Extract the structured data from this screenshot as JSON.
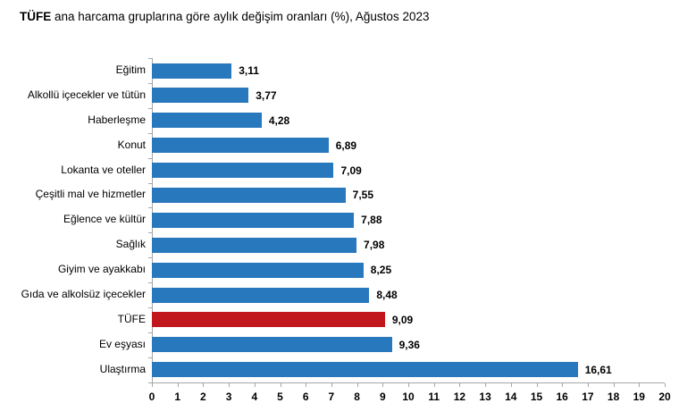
{
  "title": {
    "bold": "TÜFE",
    "rest": " ana harcama gruplarına göre aylık değişim oranları (%), Ağustos 2023"
  },
  "chart_data": {
    "type": "bar",
    "orientation": "horizontal",
    "title": "TÜFE ana harcama gruplarına göre aylık değişim oranları (%), Ağustos 2023",
    "categories": [
      "Eğitim",
      "Alkollü içecekler ve tütün",
      "Haberleşme",
      "Konut",
      "Lokanta ve oteller",
      "Çeşitli mal ve hizmetler",
      "Eğlence ve kültür",
      "Sağlık",
      "Giyim ve ayakkabı",
      "Gıda ve alkolsüz içecekler",
      "TÜFE",
      "Ev eşyası",
      "Ulaştırma"
    ],
    "values": [
      3.11,
      3.77,
      4.28,
      6.89,
      7.09,
      7.55,
      7.88,
      7.98,
      8.25,
      8.48,
      9.09,
      9.36,
      16.61
    ],
    "value_labels": [
      "3,11",
      "3,77",
      "4,28",
      "6,89",
      "7,09",
      "7,55",
      "7,88",
      "7,98",
      "8,25",
      "8,48",
      "9,09",
      "9,36",
      "16,61"
    ],
    "highlight_category": "TÜFE",
    "bar_color": "#2878be",
    "highlight_color": "#c0161c",
    "axis_color": "#a6a6a6",
    "xlabel": "",
    "ylabel": "",
    "xlim": [
      0,
      20
    ],
    "x_ticks": [
      0,
      1,
      2,
      3,
      4,
      5,
      6,
      7,
      8,
      9,
      10,
      11,
      12,
      13,
      14,
      15,
      16,
      17,
      18,
      19,
      20
    ],
    "grid": false,
    "legend": false
  }
}
